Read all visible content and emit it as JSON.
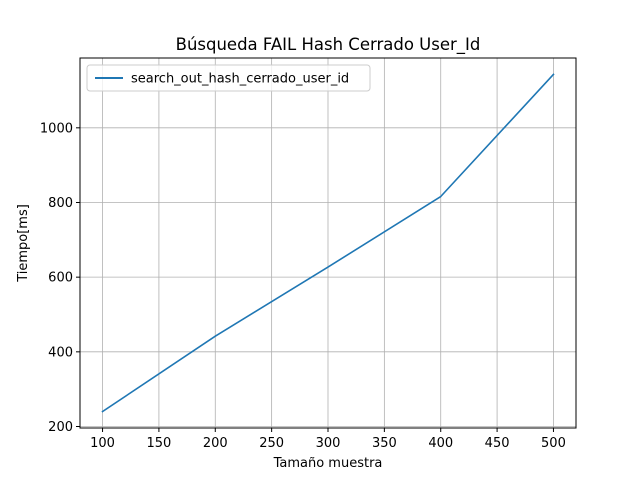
{
  "chart_data": {
    "type": "line",
    "title": "Búsqueda FAIL Hash Cerrado User_Id",
    "xlabel": "Tamaño muestra",
    "ylabel": "Tiempo[ms]",
    "x": [
      100,
      200,
      300,
      400,
      500
    ],
    "series": [
      {
        "name": "search_out_hash_cerrado_user_id",
        "color": "#1f77b4",
        "values": [
          240,
          442,
          627,
          816,
          1143
        ]
      }
    ],
    "xlim": [
      80,
      520
    ],
    "ylim": [
      196,
      1187
    ],
    "xticks": [
      100,
      150,
      200,
      250,
      300,
      350,
      400,
      450,
      500
    ],
    "yticks": [
      200,
      400,
      600,
      800,
      1000
    ],
    "grid": true,
    "legend_position": "top-left"
  }
}
